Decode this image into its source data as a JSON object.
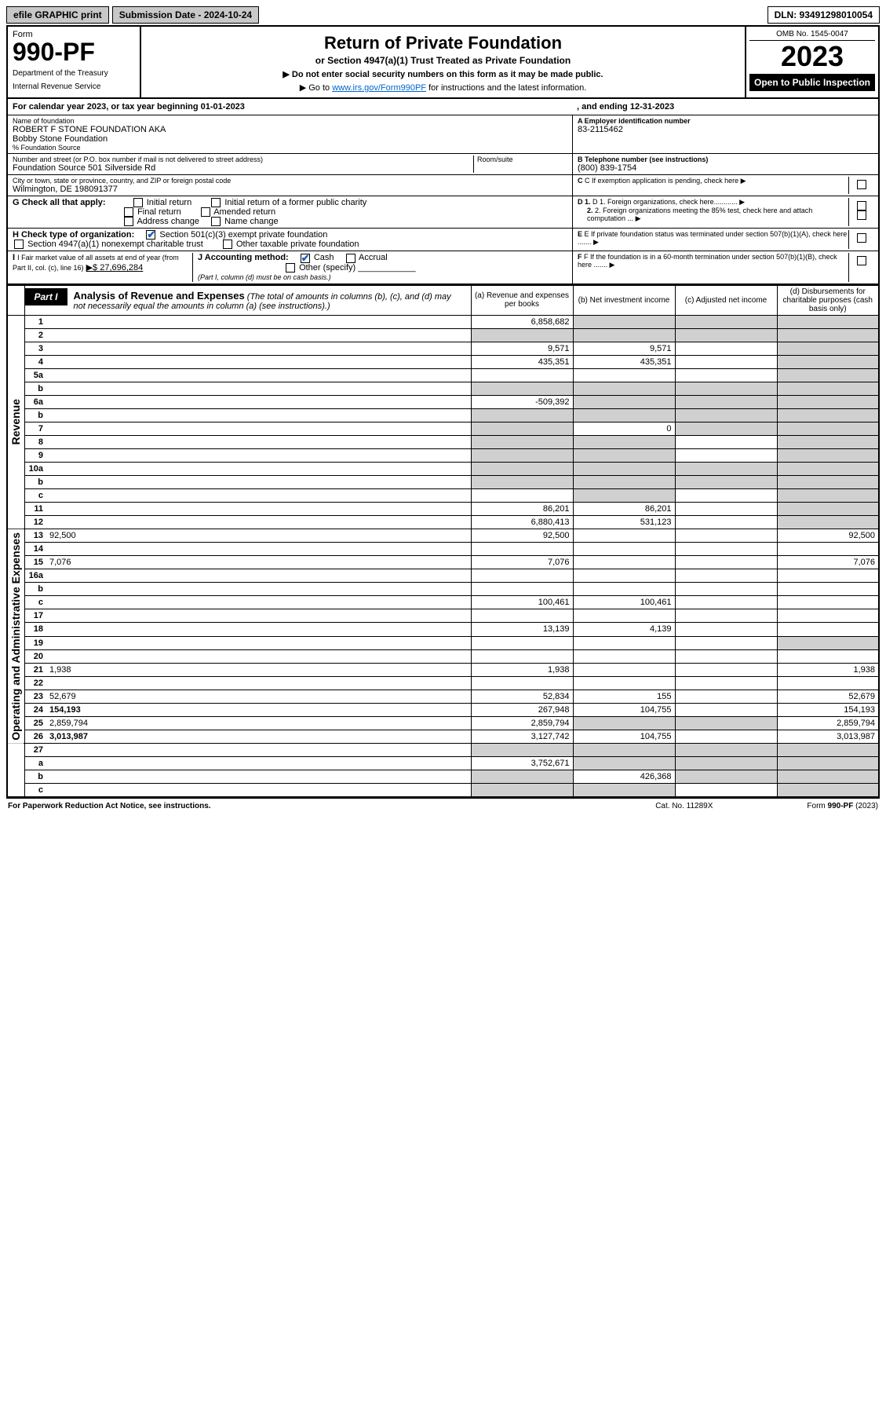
{
  "topbar": {
    "efile": "efile GRAPHIC print",
    "sub_label": "Submission Date - 2024-10-24",
    "dln": "DLN: 93491298010054"
  },
  "header": {
    "form_word": "Form",
    "form_no": "990-PF",
    "dept": "Department of the Treasury",
    "irs": "Internal Revenue Service",
    "title": "Return of Private Foundation",
    "subtitle": "or Section 4947(a)(1) Trust Treated as Private Foundation",
    "instr1": "▶ Do not enter social security numbers on this form as it may be made public.",
    "instr2_pre": "▶ Go to ",
    "instr2_link": "www.irs.gov/Form990PF",
    "instr2_post": " for instructions and the latest information.",
    "omb": "OMB No. 1545-0047",
    "year": "2023",
    "otp": "Open to Public Inspection"
  },
  "cal": {
    "line": "For calendar year 2023, or tax year beginning 01-01-2023",
    "end": ", and ending 12-31-2023"
  },
  "id": {
    "name_lbl": "Name of foundation",
    "name": "ROBERT F STONE FOUNDATION AKA",
    "name2": "Bobby Stone Foundation",
    "care_lbl": "% Foundation Source",
    "addr_lbl": "Number and street (or P.O. box number if mail is not delivered to street address)",
    "addr": "Foundation Source 501 Silverside Rd",
    "room_lbl": "Room/suite",
    "city_lbl": "City or town, state or province, country, and ZIP or foreign postal code",
    "city": "Wilmington, DE  198091377",
    "a_lbl": "A Employer identification number",
    "a_val": "83-2115462",
    "b_lbl": "B Telephone number (see instructions)",
    "b_val": "(800) 839-1754",
    "c_lbl": "C If exemption application is pending, check here",
    "g_lbl": "G Check all that apply:",
    "g_opts": [
      "Initial return",
      "Initial return of a former public charity",
      "Final return",
      "Amended return",
      "Address change",
      "Name change"
    ],
    "d1": "D 1. Foreign organizations, check here",
    "d2": "2. Foreign organizations meeting the 85% test, check here and attach computation ...",
    "h_lbl": "H Check type of organization:",
    "h1": "Section 501(c)(3) exempt private foundation",
    "h2": "Section 4947(a)(1) nonexempt charitable trust",
    "h3": "Other taxable private foundation",
    "e_lbl": "E If private foundation status was terminated under section 507(b)(1)(A), check here .......",
    "i_lbl": "I Fair market value of all assets at end of year (from Part II, col. (c), line 16)",
    "i_val": "▶$  27,696,284",
    "j_lbl": "J Accounting method:",
    "j_cash": "Cash",
    "j_accr": "Accrual",
    "j_other": "Other (specify)",
    "j_note": "(Part I, column (d) must be on cash basis.)",
    "f_lbl": "F If the foundation is in a 60-month termination under section 507(b)(1)(B), check here ......."
  },
  "part1": {
    "tag": "Part I",
    "title": "Analysis of Revenue and Expenses",
    "title_note": " (The total of amounts in columns (b), (c), and (d) may not necessarily equal the amounts in column (a) (see instructions).)",
    "col_a": "(a) Revenue and expenses per books",
    "col_b": "(b) Net investment income",
    "col_c": "(c) Adjusted net income",
    "col_d": "(d) Disbursements for charitable purposes (cash basis only)",
    "rev_label": "Revenue",
    "exp_label": "Operating and Administrative Expenses"
  },
  "rows": [
    {
      "sec": "rev",
      "n": "1",
      "d": "",
      "a": "6,858,682",
      "b": "",
      "c": "",
      "shade": [
        "b",
        "c",
        "d"
      ]
    },
    {
      "sec": "rev",
      "n": "2",
      "d": "",
      "a": "",
      "b": "",
      "c": "",
      "shade": [
        "a",
        "b",
        "c",
        "d"
      ]
    },
    {
      "sec": "rev",
      "n": "3",
      "d": "",
      "a": "9,571",
      "b": "9,571",
      "c": "",
      "shade": [
        "d"
      ]
    },
    {
      "sec": "rev",
      "n": "4",
      "d": "",
      "a": "435,351",
      "b": "435,351",
      "c": "",
      "shade": [
        "d"
      ]
    },
    {
      "sec": "rev",
      "n": "5a",
      "d": "",
      "a": "",
      "b": "",
      "c": "",
      "shade": [
        "d"
      ]
    },
    {
      "sec": "rev",
      "n": "b",
      "d": "",
      "a": "",
      "b": "",
      "c": "",
      "shade": [
        "a",
        "b",
        "c",
        "d"
      ]
    },
    {
      "sec": "rev",
      "n": "6a",
      "d": "",
      "a": "-509,392",
      "b": "",
      "c": "",
      "shade": [
        "b",
        "c",
        "d"
      ]
    },
    {
      "sec": "rev",
      "n": "b",
      "d": "",
      "a": "",
      "b": "",
      "c": "",
      "shade": [
        "a",
        "b",
        "c",
        "d"
      ]
    },
    {
      "sec": "rev",
      "n": "7",
      "d": "",
      "a": "",
      "b": "0",
      "c": "",
      "shade": [
        "a",
        "c",
        "d"
      ]
    },
    {
      "sec": "rev",
      "n": "8",
      "d": "",
      "a": "",
      "b": "",
      "c": "",
      "shade": [
        "a",
        "b",
        "d"
      ]
    },
    {
      "sec": "rev",
      "n": "9",
      "d": "",
      "a": "",
      "b": "",
      "c": "",
      "shade": [
        "a",
        "b",
        "d"
      ]
    },
    {
      "sec": "rev",
      "n": "10a",
      "d": "",
      "a": "",
      "b": "",
      "c": "",
      "shade": [
        "a",
        "b",
        "c",
        "d"
      ]
    },
    {
      "sec": "rev",
      "n": "b",
      "d": "",
      "a": "",
      "b": "",
      "c": "",
      "shade": [
        "a",
        "b",
        "c",
        "d"
      ]
    },
    {
      "sec": "rev",
      "n": "c",
      "d": "",
      "a": "",
      "b": "",
      "c": "",
      "shade": [
        "b",
        "d"
      ]
    },
    {
      "sec": "rev",
      "n": "11",
      "d": "",
      "a": "86,201",
      "b": "86,201",
      "c": "",
      "shade": [
        "d"
      ]
    },
    {
      "sec": "rev",
      "n": "12",
      "d": "",
      "bold": true,
      "a": "6,880,413",
      "b": "531,123",
      "c": "",
      "shade": [
        "d"
      ]
    },
    {
      "sec": "exp",
      "n": "13",
      "d": "92,500",
      "a": "92,500",
      "b": "",
      "c": ""
    },
    {
      "sec": "exp",
      "n": "14",
      "d": "",
      "a": "",
      "b": "",
      "c": ""
    },
    {
      "sec": "exp",
      "n": "15",
      "d": "7,076",
      "a": "7,076",
      "b": "",
      "c": ""
    },
    {
      "sec": "exp",
      "n": "16a",
      "d": "",
      "a": "",
      "b": "",
      "c": ""
    },
    {
      "sec": "exp",
      "n": "b",
      "d": "",
      "a": "",
      "b": "",
      "c": ""
    },
    {
      "sec": "exp",
      "n": "c",
      "d": "",
      "a": "100,461",
      "b": "100,461",
      "c": ""
    },
    {
      "sec": "exp",
      "n": "17",
      "d": "",
      "a": "",
      "b": "",
      "c": ""
    },
    {
      "sec": "exp",
      "n": "18",
      "d": "",
      "a": "13,139",
      "b": "4,139",
      "c": ""
    },
    {
      "sec": "exp",
      "n": "19",
      "d": "",
      "a": "",
      "b": "",
      "c": "",
      "shade": [
        "d"
      ]
    },
    {
      "sec": "exp",
      "n": "20",
      "d": "",
      "a": "",
      "b": "",
      "c": ""
    },
    {
      "sec": "exp",
      "n": "21",
      "d": "1,938",
      "a": "1,938",
      "b": "",
      "c": ""
    },
    {
      "sec": "exp",
      "n": "22",
      "d": "",
      "a": "",
      "b": "",
      "c": ""
    },
    {
      "sec": "exp",
      "n": "23",
      "d": "52,679",
      "a": "52,834",
      "b": "155",
      "c": ""
    },
    {
      "sec": "exp",
      "n": "24",
      "d": "154,193",
      "bold": true,
      "a": "267,948",
      "b": "104,755",
      "c": ""
    },
    {
      "sec": "exp",
      "n": "25",
      "d": "2,859,794",
      "a": "2,859,794",
      "b": "",
      "c": "",
      "shade": [
        "b",
        "c"
      ]
    },
    {
      "sec": "exp",
      "n": "26",
      "d": "3,013,987",
      "bold": true,
      "a": "3,127,742",
      "b": "104,755",
      "c": ""
    },
    {
      "sec": "net",
      "n": "27",
      "d": "",
      "a": "",
      "b": "",
      "c": "",
      "shade": [
        "a",
        "b",
        "c",
        "d"
      ]
    },
    {
      "sec": "net",
      "n": "a",
      "d": "",
      "bold": true,
      "a": "3,752,671",
      "b": "",
      "c": "",
      "shade": [
        "b",
        "c",
        "d"
      ]
    },
    {
      "sec": "net",
      "n": "b",
      "d": "",
      "bold": true,
      "a": "",
      "b": "426,368",
      "c": "",
      "shade": [
        "a",
        "c",
        "d"
      ]
    },
    {
      "sec": "net",
      "n": "c",
      "d": "",
      "bold": true,
      "a": "",
      "b": "",
      "c": "",
      "shade": [
        "a",
        "b",
        "d"
      ]
    }
  ],
  "footer": {
    "left": "For Paperwork Reduction Act Notice, see instructions.",
    "mid": "Cat. No. 11289X",
    "right": "Form 990-PF (2023)"
  },
  "colors": {
    "link": "#0066cc",
    "shade": "#d0d0d0",
    "btn_bg": "#c8c8c8",
    "check": "#1a5fb4"
  }
}
